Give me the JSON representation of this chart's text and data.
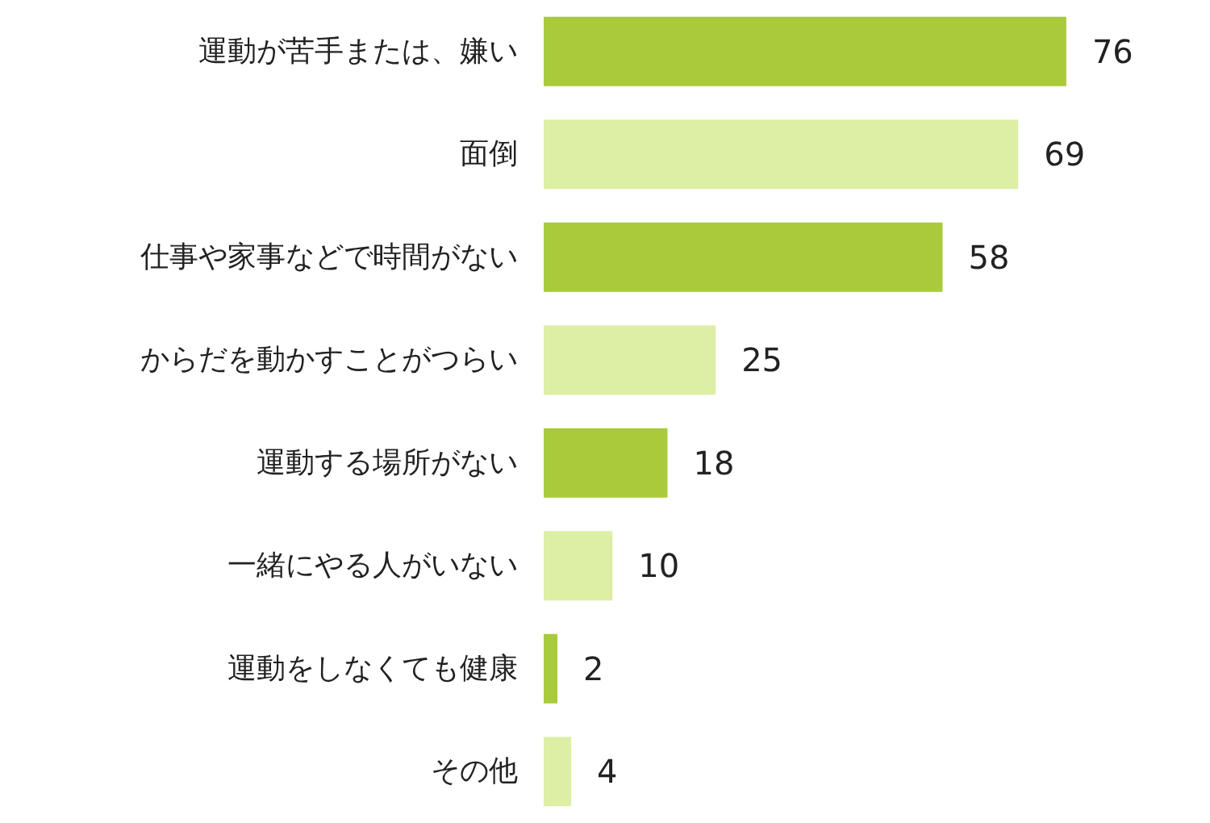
{
  "chart_data": {
    "type": "bar",
    "orientation": "horizontal",
    "data_labels": true,
    "categories": [
      "運動が苦手または、嫌い",
      "面倒",
      "仕事や家事などで時間がない",
      "からだを動かすことがつらい",
      "運動する場所がない",
      "一緒にやる人がいない",
      "運動をしなくても健康",
      "その他"
    ],
    "values": [
      76,
      69,
      58,
      25,
      18,
      10,
      2,
      4
    ],
    "colors": [
      "#a9cb3b",
      "#dcefa5",
      "#a9cb3b",
      "#dcefa5",
      "#a9cb3b",
      "#dcefa5",
      "#a9cb3b",
      "#dcefa5"
    ]
  }
}
